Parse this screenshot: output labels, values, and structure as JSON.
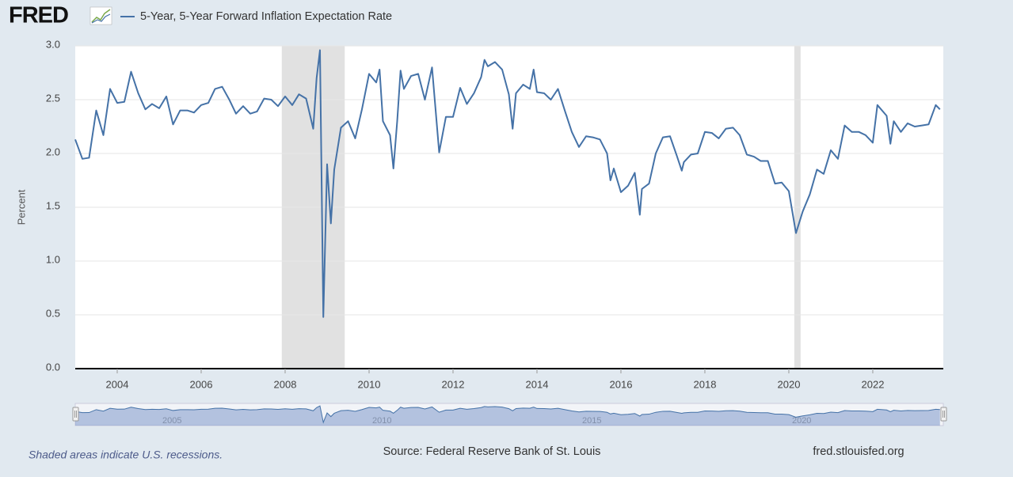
{
  "logo": "FRED",
  "chart_data": {
    "type": "line",
    "legend": "5-Year, 5-Year Forward Inflation Expectation Rate",
    "y_label": "Percent",
    "footnote": "Shaded areas indicate U.S. recessions.",
    "source": "Source: Federal Reserve Bank of St. Louis",
    "site": "fred.stlouisfed.org",
    "color": "#4572a7",
    "grid": true,
    "recessions": [
      [
        2007.92,
        2009.42
      ],
      [
        2020.13,
        2020.28
      ]
    ],
    "xlim": [
      2003,
      2023.68
    ],
    "xticks": [
      2004,
      2006,
      2008,
      2010,
      2012,
      2014,
      2016,
      2018,
      2020,
      2022
    ],
    "navigator_ticks": [
      2005,
      2010,
      2015,
      2020
    ],
    "ylim": [
      0,
      3
    ],
    "yticks": [
      {
        "value": 0,
        "label": "0.0"
      },
      {
        "value": 0.5,
        "label": "0.5"
      },
      {
        "value": 1,
        "label": "1.0"
      },
      {
        "value": 1.5,
        "label": "1.5"
      },
      {
        "value": 2,
        "label": "2.0"
      },
      {
        "value": 2.5,
        "label": "2.5"
      },
      {
        "value": 3,
        "label": "3.0"
      }
    ],
    "x": [
      2003,
      2003.17,
      2003.33,
      2003.5,
      2003.67,
      2003.83,
      2004,
      2004.17,
      2004.33,
      2004.5,
      2004.67,
      2004.83,
      2005,
      2005.17,
      2005.33,
      2005.5,
      2005.67,
      2005.83,
      2006,
      2006.17,
      2006.33,
      2006.5,
      2006.67,
      2006.83,
      2007,
      2007.17,
      2007.33,
      2007.5,
      2007.67,
      2007.83,
      2008,
      2008.17,
      2008.33,
      2008.5,
      2008.67,
      2008.75,
      2008.83,
      2008.91,
      2009,
      2009.09,
      2009.17,
      2009.33,
      2009.5,
      2009.67,
      2009.83,
      2010,
      2010.17,
      2010.25,
      2010.33,
      2010.5,
      2010.58,
      2010.67,
      2010.75,
      2010.83,
      2011,
      2011.17,
      2011.33,
      2011.5,
      2011.67,
      2011.83,
      2012,
      2012.17,
      2012.33,
      2012.5,
      2012.67,
      2012.75,
      2012.83,
      2013,
      2013.17,
      2013.33,
      2013.42,
      2013.5,
      2013.67,
      2013.83,
      2013.92,
      2014,
      2014.17,
      2014.33,
      2014.5,
      2014.67,
      2014.83,
      2015,
      2015.17,
      2015.33,
      2015.5,
      2015.67,
      2015.75,
      2015.83,
      2016,
      2016.17,
      2016.33,
      2016.45,
      2016.5,
      2016.67,
      2016.83,
      2017,
      2017.17,
      2017.33,
      2017.45,
      2017.5,
      2017.67,
      2017.83,
      2018,
      2018.17,
      2018.33,
      2018.5,
      2018.67,
      2018.83,
      2019,
      2019.17,
      2019.33,
      2019.5,
      2019.67,
      2019.83,
      2020,
      2020.17,
      2020.33,
      2020.5,
      2020.67,
      2020.83,
      2021,
      2021.17,
      2021.33,
      2021.5,
      2021.67,
      2021.83,
      2022,
      2022.11,
      2022.33,
      2022.42,
      2022.5,
      2022.67,
      2022.83,
      2023,
      2023.17,
      2023.33,
      2023.5,
      2023.6
    ],
    "values": [
      2.13,
      1.95,
      1.96,
      2.4,
      2.17,
      2.6,
      2.47,
      2.48,
      2.76,
      2.56,
      2.41,
      2.46,
      2.42,
      2.53,
      2.27,
      2.4,
      2.4,
      2.38,
      2.45,
      2.47,
      2.6,
      2.62,
      2.5,
      2.37,
      2.44,
      2.37,
      2.39,
      2.51,
      2.5,
      2.44,
      2.53,
      2.45,
      2.55,
      2.51,
      2.23,
      2.7,
      2.96,
      0.48,
      1.9,
      1.35,
      1.85,
      2.24,
      2.3,
      2.14,
      2.41,
      2.74,
      2.66,
      2.78,
      2.3,
      2.17,
      1.86,
      2.3,
      2.77,
      2.6,
      2.72,
      2.74,
      2.5,
      2.8,
      2.01,
      2.34,
      2.34,
      2.61,
      2.46,
      2.56,
      2.71,
      2.87,
      2.81,
      2.85,
      2.78,
      2.55,
      2.23,
      2.56,
      2.64,
      2.6,
      2.78,
      2.57,
      2.56,
      2.5,
      2.6,
      2.39,
      2.2,
      2.06,
      2.16,
      2.15,
      2.13,
      2.0,
      1.75,
      1.86,
      1.64,
      1.7,
      1.82,
      1.43,
      1.67,
      1.72,
      2.0,
      2.15,
      2.16,
      1.98,
      1.84,
      1.92,
      1.99,
      2.0,
      2.2,
      2.19,
      2.14,
      2.23,
      2.24,
      2.17,
      1.99,
      1.97,
      1.93,
      1.93,
      1.72,
      1.73,
      1.65,
      1.26,
      1.46,
      1.62,
      1.85,
      1.81,
      2.03,
      1.95,
      2.26,
      2.2,
      2.2,
      2.17,
      2.1,
      2.45,
      2.35,
      2.09,
      2.3,
      2.2,
      2.28,
      2.25,
      2.26,
      2.27,
      2.45,
      2.41
    ]
  }
}
